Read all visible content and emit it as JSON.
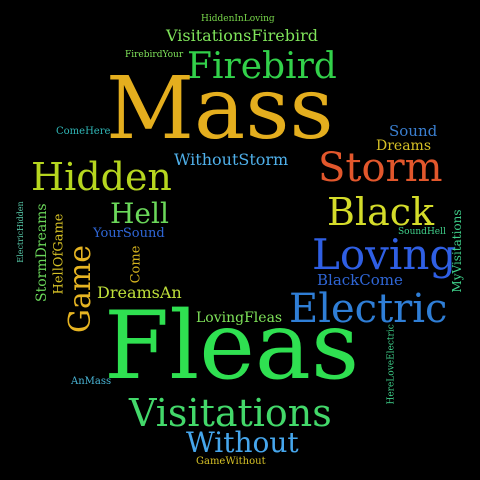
{
  "words": [
    {
      "id": "HiddenInLoving",
      "text": "HiddenInLoving",
      "color": "#78d64b"
    },
    {
      "id": "VisitationsFirebird",
      "text": "VisitationsFirebird",
      "color": "#7fe35a"
    },
    {
      "id": "FirebirdYour",
      "text": "FirebirdYour",
      "color": "#7fe35a"
    },
    {
      "id": "Firebird",
      "text": "Firebird",
      "color": "#32d14a"
    },
    {
      "id": "Mass",
      "text": "Mass",
      "color": "#e4ae1e"
    },
    {
      "id": "ComeHere",
      "text": "ComeHere",
      "color": "#2fb6b6"
    },
    {
      "id": "Sound",
      "text": "Sound",
      "color": "#3a7fd0"
    },
    {
      "id": "Dreams",
      "text": "Dreams",
      "color": "#d6c126"
    },
    {
      "id": "WithoutStorm",
      "text": "WithoutStorm",
      "color": "#4fb0ea"
    },
    {
      "id": "Storm",
      "text": "Storm",
      "color": "#e2572c"
    },
    {
      "id": "Hidden",
      "text": "Hidden",
      "color": "#b6d61f"
    },
    {
      "id": "Black",
      "text": "Black",
      "color": "#d4dc2a"
    },
    {
      "id": "Hell",
      "text": "Hell",
      "color": "#6bd85a"
    },
    {
      "id": "YourSound",
      "text": "YourSound",
      "color": "#2f66d6"
    },
    {
      "id": "SoundHell",
      "text": "SoundHell",
      "color": "#3fd08a"
    },
    {
      "id": "Loving",
      "text": "Loving",
      "color": "#2f5fe4"
    },
    {
      "id": "ElectricHidden",
      "text": "ElectricHidden",
      "color": "#56c7a7"
    },
    {
      "id": "StormDreams",
      "text": "StormDreams",
      "color": "#6bd85a"
    },
    {
      "id": "HellOfGame",
      "text": "HellOfGame",
      "color": "#d6c126"
    },
    {
      "id": "Game",
      "text": "Game",
      "color": "#e6b422"
    },
    {
      "id": "Come",
      "text": "Come",
      "color": "#d6b41e"
    },
    {
      "id": "DreamsAn",
      "text": "DreamsAn",
      "color": "#bfe03a"
    },
    {
      "id": "BlackCome",
      "text": "BlackCome",
      "color": "#2f66d6"
    },
    {
      "id": "MyVisitations",
      "text": "MyVisitations",
      "color": "#3fd08a"
    },
    {
      "id": "Electric",
      "text": "Electric",
      "color": "#2f7ed6"
    },
    {
      "id": "LovingFleas",
      "text": "LovingFleas",
      "color": "#7fe35a"
    },
    {
      "id": "Fleas",
      "text": "Fleas",
      "color": "#2fe051"
    },
    {
      "id": "HereLoveElectric",
      "text": "HereLoveElectric",
      "color": "#3fd08a"
    },
    {
      "id": "AnMass",
      "text": "AnMass",
      "color": "#4ab7d8"
    },
    {
      "id": "Visitations",
      "text": "Visitations",
      "color": "#43d86a"
    },
    {
      "id": "Without",
      "text": "Without",
      "color": "#46a6ec"
    },
    {
      "id": "GameWithout",
      "text": "GameWithout",
      "color": "#d6c126"
    }
  ]
}
